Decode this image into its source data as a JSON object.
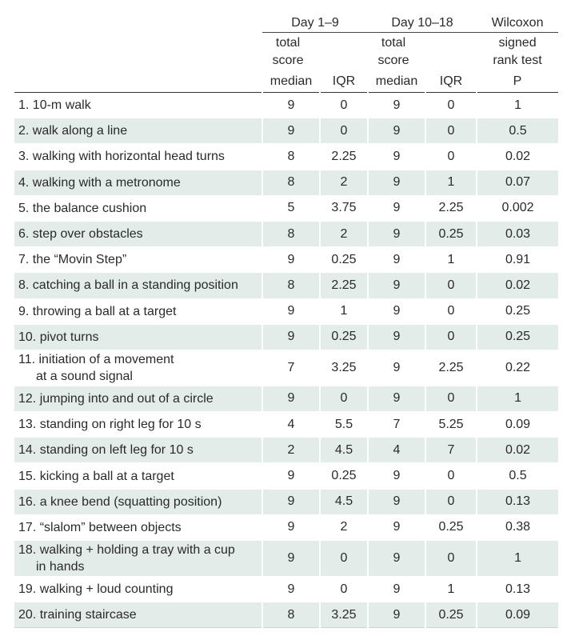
{
  "header": {
    "group1": "Day 1–9",
    "group2": "Day 10–18",
    "group3": "Wilcoxon",
    "group1_sub": "total score",
    "group2_sub": "total score",
    "group3_sub": "signed rank test",
    "col_median1": "median",
    "col_iqr1": "IQR",
    "col_median2": "median",
    "col_iqr2": "IQR",
    "col_p": "P"
  },
  "rows": [
    {
      "label": "1. 10-m walk",
      "median1": "9",
      "iqr1": "0",
      "median2": "9",
      "iqr2": "0",
      "p": "1"
    },
    {
      "label": "2. walk along a line",
      "median1": "9",
      "iqr1": "0",
      "median2": "9",
      "iqr2": "0",
      "p": "0.5"
    },
    {
      "label": "3. walking with horizontal head turns",
      "median1": "8",
      "iqr1": "2.25",
      "median2": "9",
      "iqr2": "0",
      "p": "0.02"
    },
    {
      "label": "4. walking with a metronome",
      "median1": "8",
      "iqr1": "2",
      "median2": "9",
      "iqr2": "1",
      "p": "0.07"
    },
    {
      "label": "5. the balance cushion",
      "median1": "5",
      "iqr1": "3.75",
      "median2": "9",
      "iqr2": "2.25",
      "p": "0.002"
    },
    {
      "label": "6. step over obstacles",
      "median1": "8",
      "iqr1": "2",
      "median2": "9",
      "iqr2": "0.25",
      "p": "0.03"
    },
    {
      "label": "7. the “Movin Step”",
      "median1": "9",
      "iqr1": "0.25",
      "median2": "9",
      "iqr2": "1",
      "p": "0.91"
    },
    {
      "label": "8. catching a ball in a standing position",
      "median1": "8",
      "iqr1": "2.25",
      "median2": "9",
      "iqr2": "0",
      "p": "0.02"
    },
    {
      "label": "9. throwing a ball at a target",
      "median1": "9",
      "iqr1": "1",
      "median2": "9",
      "iqr2": "0",
      "p": "0.25"
    },
    {
      "label": "10. pivot turns",
      "median1": "9",
      "iqr1": "0.25",
      "median2": "9",
      "iqr2": "0",
      "p": "0.25"
    },
    {
      "label": "11. initiation of a movement",
      "label2": "at a sound signal",
      "median1": "7",
      "iqr1": "3.25",
      "median2": "9",
      "iqr2": "2.25",
      "p": "0.22"
    },
    {
      "label": "12. jumping into and out of a circle",
      "median1": "9",
      "iqr1": "0",
      "median2": "9",
      "iqr2": "0",
      "p": "1"
    },
    {
      "label": "13. standing on right leg for 10 s",
      "median1": "4",
      "iqr1": "5.5",
      "median2": "7",
      "iqr2": "5.25",
      "p": "0.09"
    },
    {
      "label": "14. standing on left leg for 10 s",
      "median1": "2",
      "iqr1": "4.5",
      "median2": "4",
      "iqr2": "7",
      "p": "0.02"
    },
    {
      "label": "15. kicking a ball at a target",
      "median1": "9",
      "iqr1": "0.25",
      "median2": "9",
      "iqr2": "0",
      "p": "0.5"
    },
    {
      "label": "16. a knee bend (squatting position)",
      "median1": "9",
      "iqr1": "4.5",
      "median2": "9",
      "iqr2": "0",
      "p": "0.13"
    },
    {
      "label": "17. “slalom” between objects",
      "median1": "9",
      "iqr1": "2",
      "median2": "9",
      "iqr2": "0.25",
      "p": "0.38"
    },
    {
      "label": "18. walking + holding a tray with a cup",
      "label2": "in hands",
      "median1": "9",
      "iqr1": "0",
      "median2": "9",
      "iqr2": "0",
      "p": "1"
    },
    {
      "label": "19. walking + loud counting",
      "median1": "9",
      "iqr1": "0",
      "median2": "9",
      "iqr2": "1",
      "p": "0.13"
    },
    {
      "label": "20. training staircase",
      "median1": "8",
      "iqr1": "3.25",
      "median2": "9",
      "iqr2": "0.25",
      "p": "0.09"
    }
  ],
  "colors": {
    "row_shade": "#e3ece8",
    "text": "#2a2a2a",
    "rule": "#333333"
  }
}
